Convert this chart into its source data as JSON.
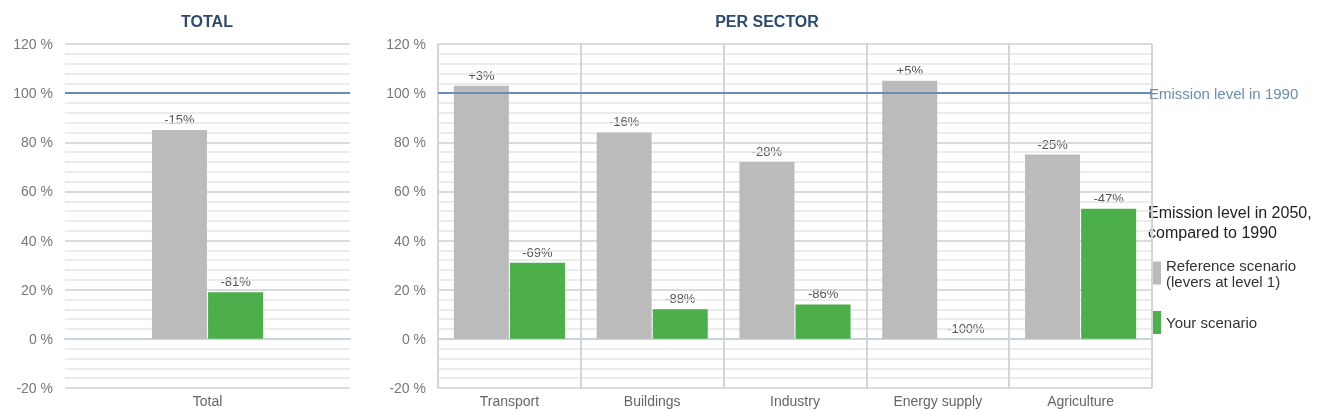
{
  "chart_data": [
    {
      "type": "bar",
      "title": "TOTAL",
      "categories": [
        "Total"
      ],
      "series": [
        {
          "color": "#bbbbbb",
          "values": [
            85
          ]
        },
        {
          "color": "#4caf4b",
          "values": [
            19
          ]
        }
      ],
      "ylim": [
        -20,
        120
      ],
      "yticks": [
        {
          "value": -20,
          "label": "-20 %"
        },
        {
          "value": 0,
          "label": "0 %"
        },
        {
          "value": 20,
          "label": "20 %"
        },
        {
          "value": 40,
          "label": "40 %"
        },
        {
          "value": 60,
          "label": "60 %"
        },
        {
          "value": 80,
          "label": "80 %"
        },
        {
          "value": 100,
          "label": "100 %"
        },
        {
          "value": 120,
          "label": "120 %"
        }
      ],
      "grid": "y",
      "legend": false,
      "ref_lines": [
        {
          "axis": "y",
          "value": 100,
          "color": "#6a8db3"
        }
      ],
      "annotations": [
        {
          "text": "-15%",
          "x": "Total",
          "y": 85
        },
        {
          "text": "-81%",
          "x": "Total",
          "y": 19
        }
      ]
    },
    {
      "type": "bar",
      "title": "PER SECTOR",
      "categories": [
        "Transport",
        "Buildings",
        "Industry",
        "Energy supply",
        "Agriculture"
      ],
      "series": [
        {
          "name": "Reference scenario (levers at level 1)",
          "color": "#bbbbbb",
          "values": [
            103,
            84,
            72,
            105,
            75
          ]
        },
        {
          "name": "Your scenario",
          "color": "#4caf4b",
          "values": [
            31,
            12,
            14,
            0,
            53
          ]
        }
      ],
      "ylim": [
        -20,
        120
      ],
      "yticks": [
        {
          "value": -20,
          "label": "-20 %"
        },
        {
          "value": 0,
          "label": "0 %"
        },
        {
          "value": 20,
          "label": "20 %"
        },
        {
          "value": 40,
          "label": "40 %"
        },
        {
          "value": 60,
          "label": "60 %"
        },
        {
          "value": 80,
          "label": "80 %"
        },
        {
          "value": 100,
          "label": "100 %"
        },
        {
          "value": 120,
          "label": "120 %"
        }
      ],
      "grid": true,
      "legend": "right",
      "legend_title": "Emission level in 2050, compared to 1990",
      "ref_lines": [
        {
          "axis": "y",
          "value": 100,
          "label": "Emission level in 1990",
          "color": "#6a8db3"
        }
      ],
      "annotations": [
        {
          "text": "+3%",
          "x": "Transport",
          "y": 103
        },
        {
          "text": "-69%",
          "x": "Transport",
          "y": 31
        },
        {
          "text": "-16%",
          "x": "Buildings",
          "y": 84
        },
        {
          "text": "-88%",
          "x": "Buildings",
          "y": 12
        },
        {
          "text": "-28%",
          "x": "Industry",
          "y": 72
        },
        {
          "text": "-86%",
          "x": "Industry",
          "y": 14
        },
        {
          "text": "+5%",
          "x": "Energy supply",
          "y": 105
        },
        {
          "text": "-100%",
          "x": "Energy supply",
          "y": 0
        },
        {
          "text": "-25%",
          "x": "Agriculture",
          "y": 75
        },
        {
          "text": "-47%",
          "x": "Agriculture",
          "y": 53
        }
      ]
    }
  ]
}
